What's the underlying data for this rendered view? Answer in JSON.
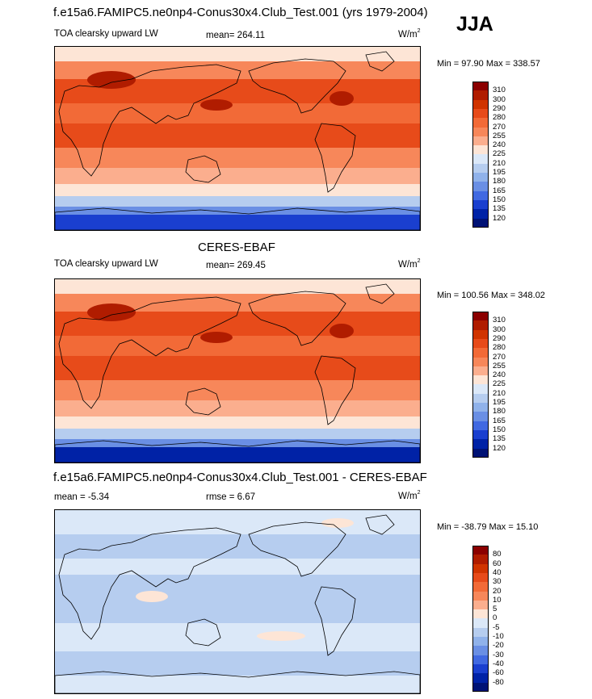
{
  "figure_title": "f.e15a6.FAMIPC5.ne0np4-Conus30x4.Club_Test.001 (yrs 1979-2004)",
  "season": "JJA",
  "panels": [
    {
      "id": "model",
      "section_title": "",
      "left_label": "TOA clearsky upward LW",
      "center_label": "mean= 264.11",
      "units_base": "W/m",
      "units_exp": "2",
      "minmax": "Min =  97.90 Max = 338.57",
      "colorbar": {
        "colors": [
          "#8b0000",
          "#b01c00",
          "#d03400",
          "#e74b1a",
          "#f26a37",
          "#f7875a",
          "#fbae8e",
          "#fde5d6",
          "#dbe8f8",
          "#b6cdef",
          "#90b2ea",
          "#6a8fe4",
          "#4169e1",
          "#1a3fcf",
          "#0022a6",
          "#001275"
        ],
        "labels": [
          "310",
          "300",
          "290",
          "280",
          "270",
          "255",
          "240",
          "225",
          "210",
          "195",
          "180",
          "165",
          "150",
          "135",
          "120"
        ]
      }
    },
    {
      "id": "obs",
      "section_title": "CERES-EBAF",
      "left_label": "TOA clearsky upward LW",
      "center_label": "mean= 269.45",
      "units_base": "W/m",
      "units_exp": "2",
      "minmax": "Min = 100.56 Max = 348.02",
      "colorbar": {
        "colors": [
          "#8b0000",
          "#b01c00",
          "#d03400",
          "#e74b1a",
          "#f26a37",
          "#f7875a",
          "#fbae8e",
          "#fde5d6",
          "#dbe8f8",
          "#b6cdef",
          "#90b2ea",
          "#6a8fe4",
          "#4169e1",
          "#1a3fcf",
          "#0022a6",
          "#001275"
        ],
        "labels": [
          "310",
          "300",
          "290",
          "280",
          "270",
          "255",
          "240",
          "225",
          "210",
          "195",
          "180",
          "165",
          "150",
          "135",
          "120"
        ]
      }
    },
    {
      "id": "diff",
      "section_title": "f.e15a6.FAMIPC5.ne0np4-Conus30x4.Club_Test.001 - CERES-EBAF",
      "left_label": "mean =  -5.34",
      "center_label": "rmse =   6.67",
      "units_base": "W/m",
      "units_exp": "2",
      "minmax": "Min = -38.79 Max =  15.10",
      "colorbar": {
        "colors": [
          "#8b0000",
          "#b01c00",
          "#d03400",
          "#e74b1a",
          "#f26a37",
          "#f7875a",
          "#fbae8e",
          "#fde5d6",
          "#dbe8f8",
          "#b6cdef",
          "#90b2ea",
          "#6a8fe4",
          "#4169e1",
          "#1a3fcf",
          "#0022a6",
          "#001275"
        ],
        "labels": [
          "80",
          "60",
          "40",
          "30",
          "20",
          "10",
          "5",
          "0",
          "-5",
          "-10",
          "-20",
          "-30",
          "-40",
          "-60",
          "-80"
        ]
      }
    }
  ]
}
